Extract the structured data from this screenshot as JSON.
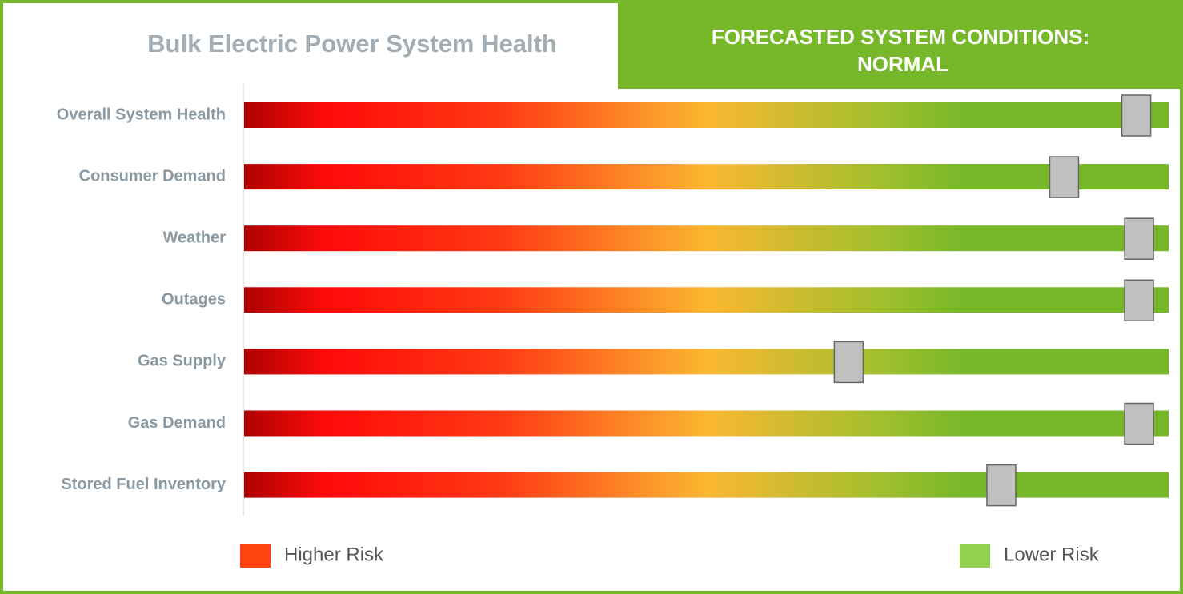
{
  "chart_data": {
    "type": "gauge",
    "title": "Bulk Electric Power System Health",
    "status_heading": "FORECASTED SYSTEM CONDITIONS:",
    "status_value": "NORMAL",
    "categories": [
      "Overall System Health",
      "Consumer Demand",
      "Weather",
      "Outages",
      "Gas Supply",
      "Gas Demand",
      "Stored Fuel Inventory"
    ],
    "values": [
      96.5,
      88.7,
      96.8,
      96.8,
      65.4,
      96.8,
      81.9
    ],
    "xlim": [
      0,
      100
    ],
    "legend": [
      {
        "name": "Higher Risk",
        "color": "#ff4412"
      },
      {
        "name": "Lower Risk",
        "color": "#92d050"
      }
    ],
    "marker_color": "#c0c0c0"
  }
}
